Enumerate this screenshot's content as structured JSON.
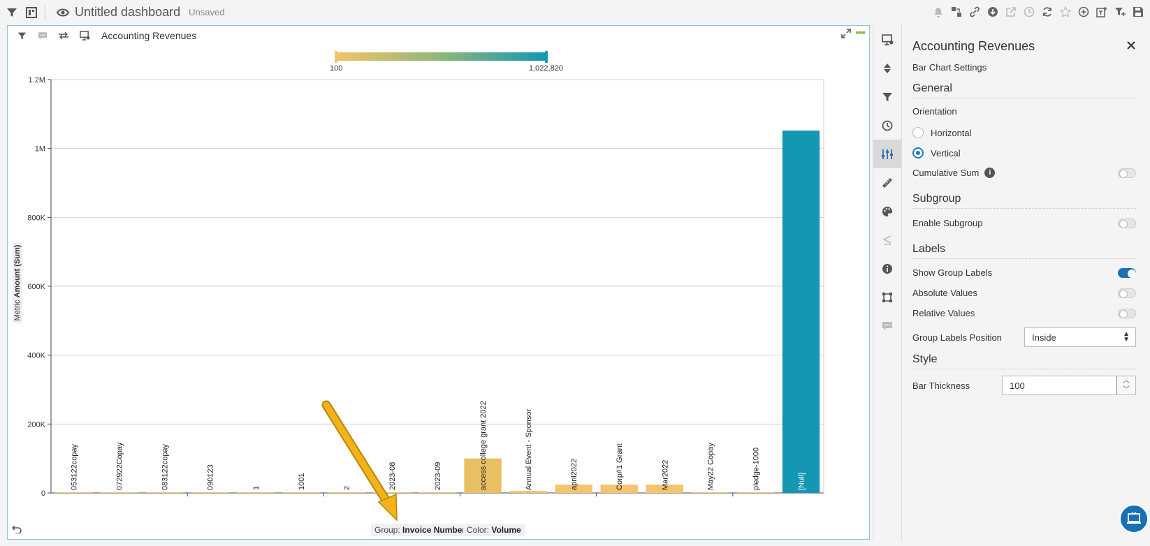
{
  "topbar": {
    "title": "Untitled dashboard",
    "status": "Unsaved"
  },
  "widget": {
    "title": "Accounting Revenues",
    "legend": {
      "min_label": "100",
      "max_label": "1,022,820",
      "colors": [
        "#f5c36b",
        "#8cb77a",
        "#1497b3"
      ]
    },
    "footer": {
      "group_label": "Group:",
      "group_value": "Invoice Number",
      "color_label": "Color:",
      "color_value": "Volume"
    }
  },
  "chart_data": {
    "type": "bar",
    "orientation": "vertical",
    "ylabel_prefix": "Metric",
    "ylabel": "Amount (Sum)",
    "ylim": [
      0,
      1200000
    ],
    "yticks": [
      "0",
      "200K",
      "400K",
      "600K",
      "800K",
      "1M",
      "1.2M"
    ],
    "ytick_values": [
      0,
      200000,
      400000,
      600000,
      800000,
      1000000,
      1200000
    ],
    "categories": [
      "053122copay",
      "072922Copay",
      "083122copay",
      "090123",
      "1",
      "1001",
      "2",
      "2023-08",
      "2023-09",
      "access college grant 2022",
      "Annual Event - Sponsor",
      "april2022",
      "Corp#1 Grant",
      "Mar2022",
      "May22 Copay",
      "pledge-1000",
      "[Null]"
    ],
    "values": [
      400,
      200,
      300,
      1500,
      100,
      500,
      200,
      300,
      200,
      100000,
      6000,
      24000,
      24000,
      24000,
      300,
      400,
      1052000
    ],
    "bar_colors": [
      "#f5c36b",
      "#f5c36b",
      "#f5c36b",
      "#f5c36b",
      "#f5c36b",
      "#f5c36b",
      "#f5c36b",
      "#f5c36b",
      "#f5c36b",
      "#e8c062",
      "#f5c36b",
      "#f5c36b",
      "#f5c36b",
      "#f5c36b",
      "#f5c36b",
      "#f5c36b",
      "#1497b3"
    ],
    "group_labels_position": "inside",
    "grid": true
  },
  "panel": {
    "title": "Accounting Revenues",
    "subtitle": "Bar Chart Settings",
    "general": "General",
    "orientation": "Orientation",
    "horizontal": "Horizontal",
    "vertical": "Vertical",
    "cumulative_sum": "Cumulative Sum",
    "subgroup": "Subgroup",
    "enable_subgroup": "Enable Subgroup",
    "labels": "Labels",
    "show_group_labels": "Show Group Labels",
    "absolute_values": "Absolute Values",
    "relative_values": "Relative Values",
    "group_labels_position": "Group Labels Position",
    "group_labels_position_value": "Inside",
    "style": "Style",
    "bar_thickness": "Bar Thickness",
    "bar_thickness_value": "100"
  }
}
